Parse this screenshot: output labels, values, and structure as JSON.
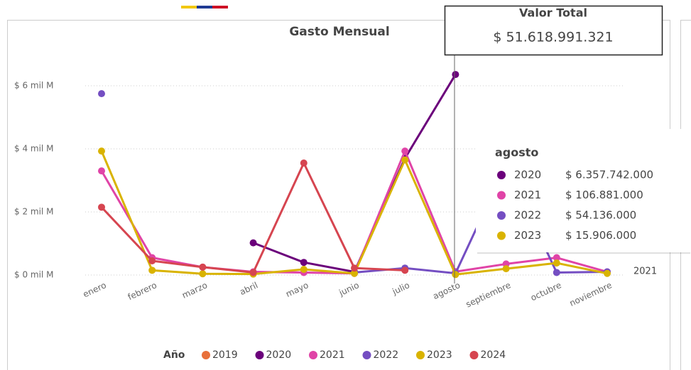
{
  "chart_data": {
    "type": "line",
    "title": "Gasto Mensual",
    "categories": [
      "enero",
      "febrero",
      "marzo",
      "abril",
      "mayo",
      "junio",
      "julio",
      "agosto",
      "septiembre",
      "octubre",
      "noviembre"
    ],
    "series": [
      {
        "name": "2019",
        "color": "#e8703a",
        "values": [
          null,
          null,
          null,
          null,
          null,
          null,
          null,
          null,
          null,
          null,
          null
        ]
      },
      {
        "name": "2020",
        "color": "#6b007b",
        "values": [
          null,
          null,
          null,
          1.02,
          0.4,
          0.1,
          3.7,
          6.357742,
          null,
          null,
          null
        ]
      },
      {
        "name": "2021",
        "color": "#e044a7",
        "values": [
          3.3,
          0.55,
          0.25,
          0.1,
          0.08,
          0.05,
          3.93,
          0.106881,
          0.35,
          0.55,
          0.1
        ]
      },
      {
        "name": "2022",
        "color": "#744ec2",
        "values": [
          5.75,
          null,
          null,
          null,
          null,
          0.08,
          0.22,
          0.054136,
          3.5,
          0.08,
          0.1
        ]
      },
      {
        "name": "2023",
        "color": "#d9b300",
        "values": [
          3.93,
          0.15,
          0.04,
          0.03,
          0.18,
          0.05,
          3.65,
          0.015906,
          0.2,
          0.38,
          0.05
        ]
      },
      {
        "name": "2024",
        "color": "#d64550",
        "values": [
          2.15,
          0.45,
          0.25,
          0.08,
          3.55,
          0.22,
          0.15,
          null,
          null,
          null,
          null
        ]
      }
    ],
    "ylim": [
      0,
      7
    ],
    "yticks": [
      {
        "value": 0,
        "label": "$ 0 mil M"
      },
      {
        "value": 2,
        "label": "$ 2 mil M"
      },
      {
        "value": 4,
        "label": "$ 4 mil M"
      },
      {
        "value": 6,
        "label": "$ 6 mil M"
      }
    ],
    "grid": true,
    "legend_title": "Año",
    "annotations": [
      "2021"
    ]
  },
  "card": {
    "title": "Valor Total",
    "value": "$ 51.618.991.321"
  },
  "tooltip": {
    "title": "agosto",
    "rows": [
      {
        "name": "2020",
        "value": "$ 6.357.742.000"
      },
      {
        "name": "2021",
        "value": "$ 106.881.000"
      },
      {
        "name": "2022",
        "value": "$ 54.136.000"
      },
      {
        "name": "2023",
        "value": "$ 15.906.000"
      }
    ]
  }
}
